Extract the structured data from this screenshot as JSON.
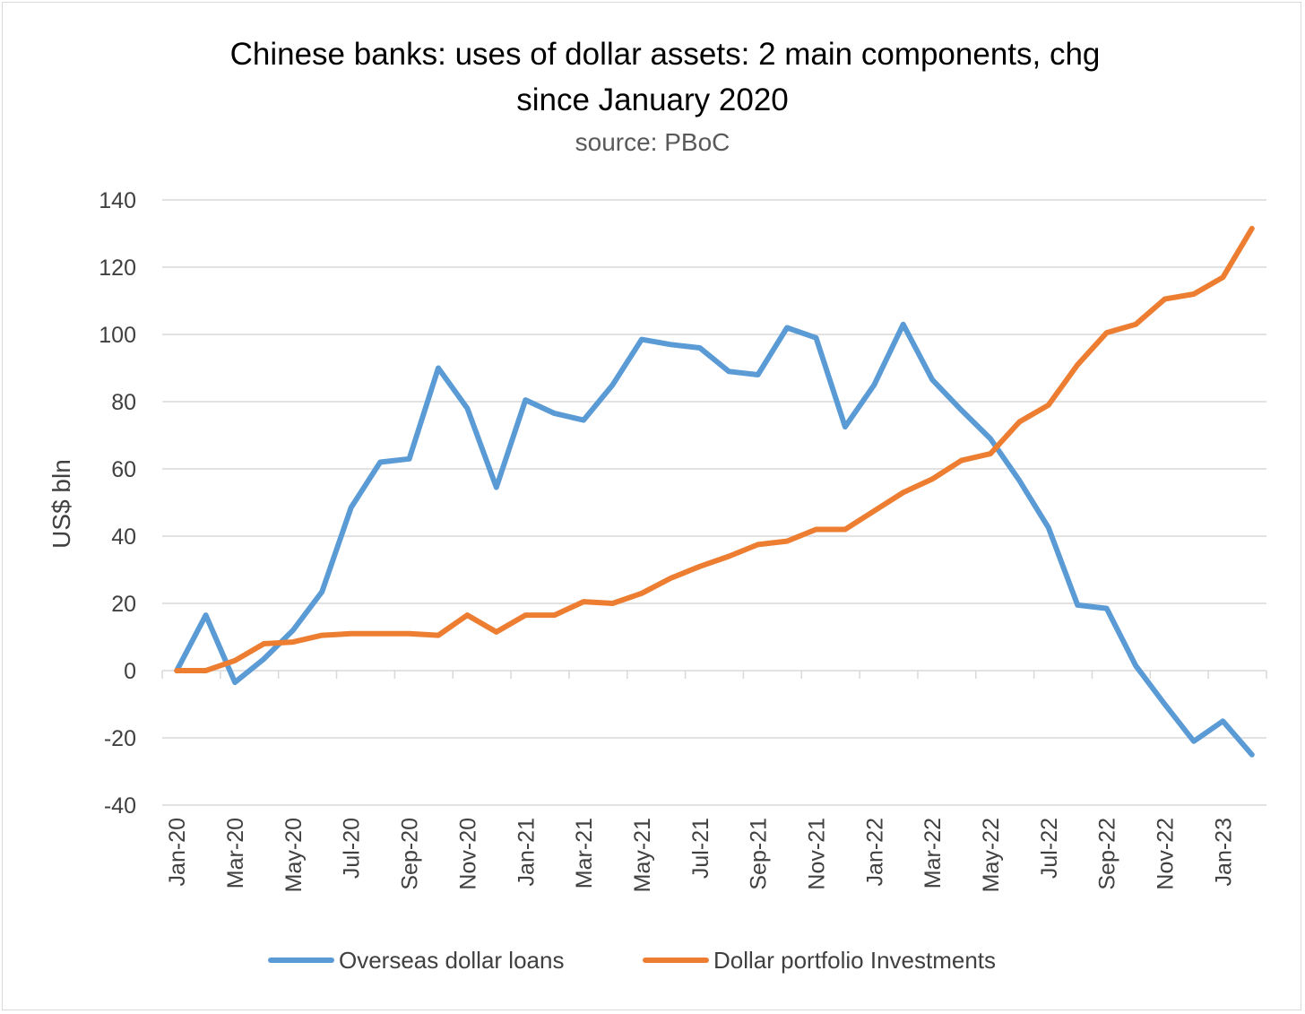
{
  "chart_data": {
    "type": "line",
    "title_line1": "Chinese banks: uses of dollar assets: 2 main components, chg",
    "title_line2": "since January 2020",
    "subtitle": "source: PBoC",
    "ylabel": "US$ bln",
    "xlabel": "",
    "ylim": [
      -40,
      140
    ],
    "yticks": [
      -40,
      -20,
      0,
      20,
      40,
      60,
      80,
      100,
      120,
      140
    ],
    "grid": "horizontal",
    "legend_position": "bottom",
    "categories": [
      "Jan-20",
      "Feb-20",
      "Mar-20",
      "Apr-20",
      "May-20",
      "Jun-20",
      "Jul-20",
      "Aug-20",
      "Sep-20",
      "Oct-20",
      "Nov-20",
      "Dec-20",
      "Jan-21",
      "Feb-21",
      "Mar-21",
      "Apr-21",
      "May-21",
      "Jun-21",
      "Jul-21",
      "Aug-21",
      "Sep-21",
      "Oct-21",
      "Nov-21",
      "Dec-21",
      "Jan-22",
      "Feb-22",
      "Mar-22",
      "Apr-22",
      "May-22",
      "Jun-22",
      "Jul-22",
      "Aug-22",
      "Sep-22",
      "Oct-22",
      "Nov-22",
      "Dec-22",
      "Jan-23",
      "Feb-23"
    ],
    "tick_labels": [
      "Jan-20",
      "Mar-20",
      "May-20",
      "Jul-20",
      "Sep-20",
      "Nov-20",
      "Jan-21",
      "Mar-21",
      "May-21",
      "Jul-21",
      "Sep-21",
      "Nov-21",
      "Jan-22",
      "Mar-22",
      "May-22",
      "Jul-22",
      "Sep-22",
      "Nov-22",
      "Jan-23"
    ],
    "series": [
      {
        "name": "Overseas dollar loans",
        "color": "#5b9bd5",
        "values": [
          0,
          16.5,
          -3.5,
          3.5,
          12,
          23.5,
          48.5,
          62,
          63,
          90,
          78,
          54.5,
          80.5,
          76.5,
          74.5,
          85,
          98.5,
          97,
          96,
          89,
          88,
          102,
          99,
          72.5,
          85,
          103,
          86.5,
          77.5,
          69,
          56.5,
          42.5,
          19.5,
          18.5,
          1.5,
          -10,
          -21,
          -15,
          -25
        ]
      },
      {
        "name": "Dollar portfolio Investments",
        "color": "#ed7d31",
        "values": [
          0,
          0,
          3,
          8,
          8.5,
          10.5,
          11,
          11,
          11,
          10.5,
          16.5,
          11.5,
          16.5,
          16.5,
          20.5,
          20,
          23,
          27.5,
          31,
          34,
          37.5,
          38.5,
          42,
          42,
          47.5,
          53,
          57,
          62.5,
          64.5,
          74,
          79,
          91,
          100.5,
          103,
          110.5,
          112,
          117,
          131.5
        ]
      }
    ]
  }
}
